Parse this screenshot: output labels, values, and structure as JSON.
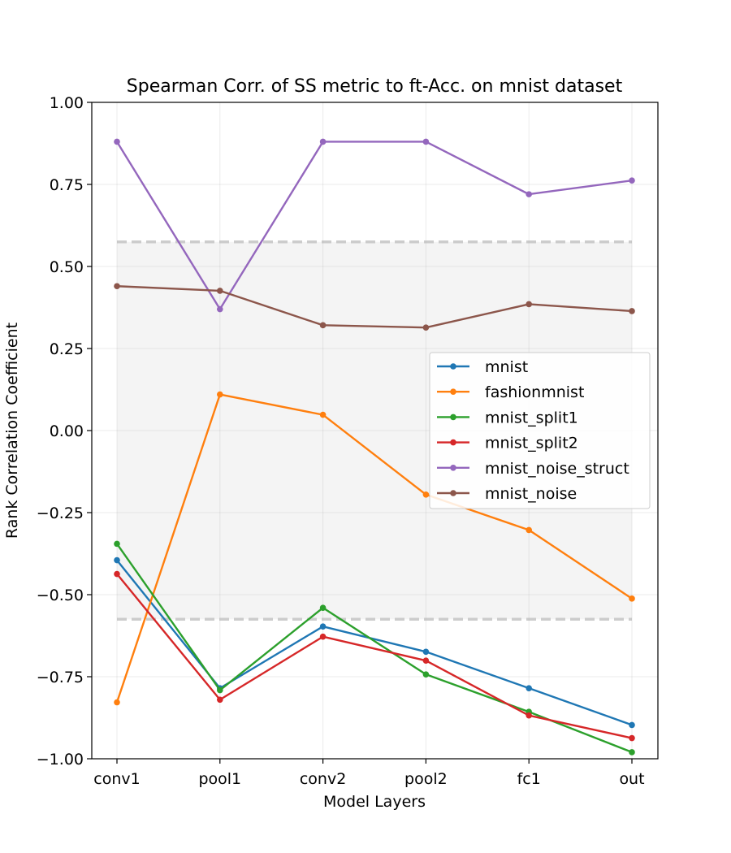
{
  "chart_data": {
    "type": "line",
    "title": "Spearman Corr. of SS metric to ft-Acc. on mnist dataset",
    "xlabel": "Model Layers",
    "ylabel": "Rank Correlation Coefficient",
    "categories": [
      "conv1",
      "pool1",
      "conv2",
      "pool2",
      "fc1",
      "out"
    ],
    "ylim": [
      -1.0,
      1.0
    ],
    "yticks": [
      "−1.00",
      "−0.75",
      "−0.50",
      "−0.25",
      "0.00",
      "0.25",
      "0.50",
      "0.75",
      "1.00"
    ],
    "grid": true,
    "legend_position": "center-right",
    "significance_band": [
      -0.575,
      0.575
    ],
    "series": [
      {
        "name": "mnist",
        "color": "#1f77b4",
        "values": [
          -0.395,
          -0.785,
          -0.597,
          -0.674,
          -0.785,
          -0.897
        ]
      },
      {
        "name": "fashionmnist",
        "color": "#ff7f0e",
        "values": [
          -0.828,
          0.11,
          0.048,
          -0.195,
          -0.303,
          -0.512
        ]
      },
      {
        "name": "mnist_split1",
        "color": "#2ca02c",
        "values": [
          -0.345,
          -0.791,
          -0.54,
          -0.743,
          -0.857,
          -0.98
        ]
      },
      {
        "name": "mnist_split2",
        "color": "#d62728",
        "values": [
          -0.437,
          -0.82,
          -0.628,
          -0.701,
          -0.868,
          -0.937
        ]
      },
      {
        "name": "mnist_noise_struct",
        "color": "#9467bd",
        "values": [
          0.88,
          0.37,
          0.88,
          0.88,
          0.72,
          0.762
        ]
      },
      {
        "name": "mnist_noise",
        "color": "#8c564b",
        "values": [
          0.44,
          0.426,
          0.321,
          0.314,
          0.385,
          0.364
        ]
      }
    ]
  }
}
